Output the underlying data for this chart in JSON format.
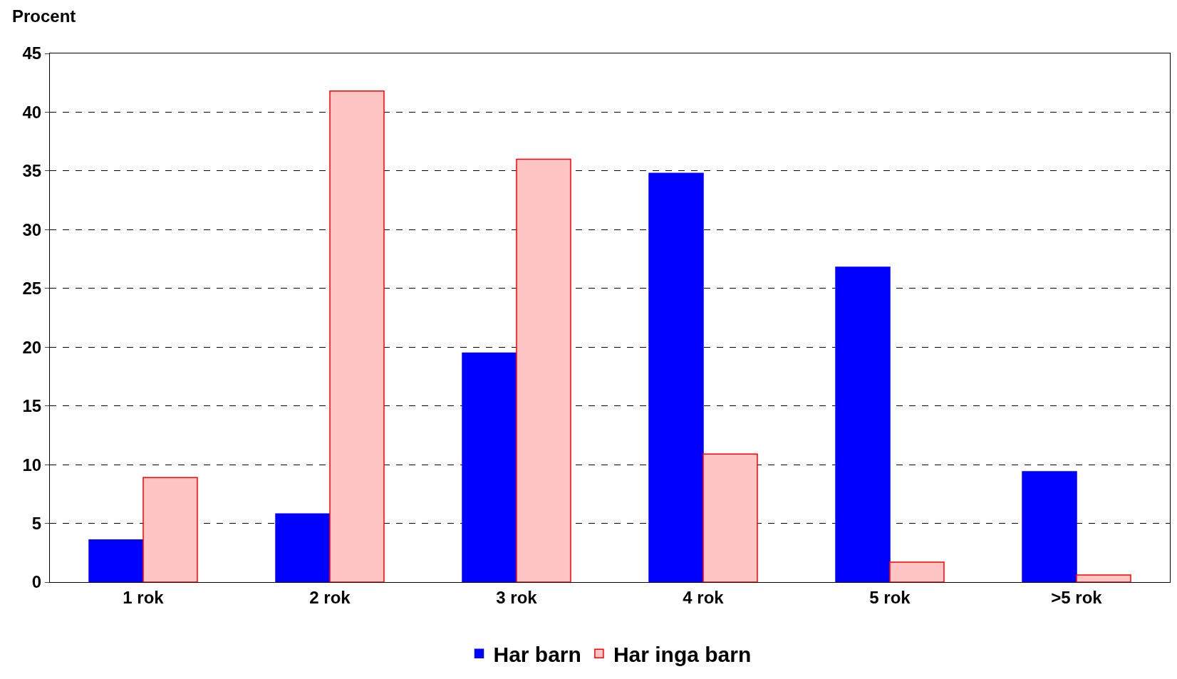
{
  "chart_data": {
    "type": "bar",
    "ylabel": "Procent",
    "categories": [
      "1 rok",
      "2 rok",
      "3 rok",
      "4 rok",
      "5 rok",
      ">5 rok"
    ],
    "series": [
      {
        "name": "Har barn",
        "color": "#0000ff",
        "values": [
          3.6,
          5.8,
          19.5,
          34.8,
          26.8,
          9.4
        ]
      },
      {
        "name": "Har inga barn",
        "color": "#ffc4c4",
        "values": [
          8.9,
          41.8,
          36.0,
          10.9,
          1.7,
          0.6
        ]
      }
    ],
    "ylim": [
      0,
      45
    ],
    "yticks": [
      0,
      5,
      10,
      15,
      20,
      25,
      30,
      35,
      40,
      45
    ],
    "grid": "y",
    "legend": "bottom"
  }
}
